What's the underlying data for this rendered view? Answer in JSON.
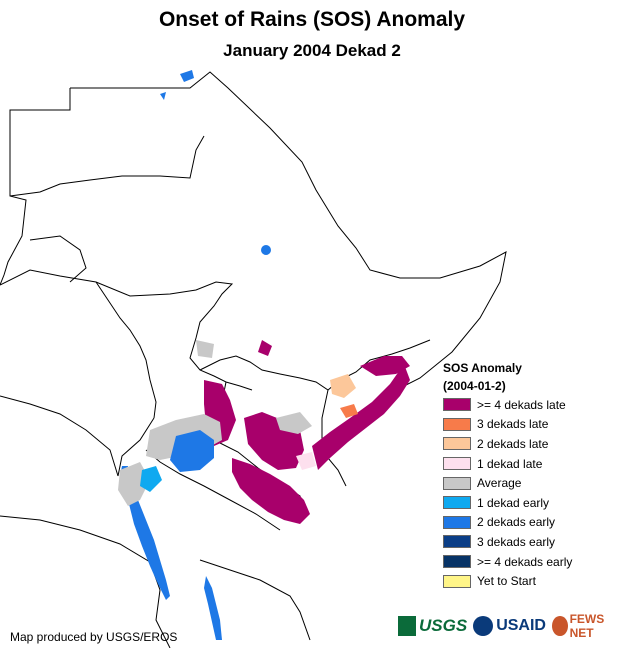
{
  "title": "Onset of Rains (SOS) Anomaly",
  "subtitle": "January 2004 Dekad 2",
  "legend": {
    "heading": "SOS Anomaly",
    "period": "(2004-01-2)",
    "items": [
      {
        "label": ">= 4 dekads late",
        "color": "#a8006b"
      },
      {
        "label": "3 dekads late",
        "color": "#f77b4a"
      },
      {
        "label": "2 dekads late",
        "color": "#fcc79a"
      },
      {
        "label": "1 dekad late",
        "color": "#fde0ee"
      },
      {
        "label": "Average",
        "color": "#c8c8c8"
      },
      {
        "label": "1 dekad early",
        "color": "#0fa9f0"
      },
      {
        "label": "2 dekads early",
        "color": "#1e78e6"
      },
      {
        "label": "3 dekads early",
        "color": "#0b3e87"
      },
      {
        "label": ">= 4 dekads early",
        "color": "#073366"
      },
      {
        "label": "Yet to Start",
        "color": "#fff588"
      }
    ]
  },
  "credit": "Map produced by USGS/EROS",
  "logos": {
    "usgs": "USGS",
    "usaid": "USAID",
    "fewsnet": "FEWS NET"
  },
  "colors": {
    "water": "#1e78e6",
    "late4": "#a8006b",
    "average": "#c8c8c8",
    "border": "#000000"
  }
}
